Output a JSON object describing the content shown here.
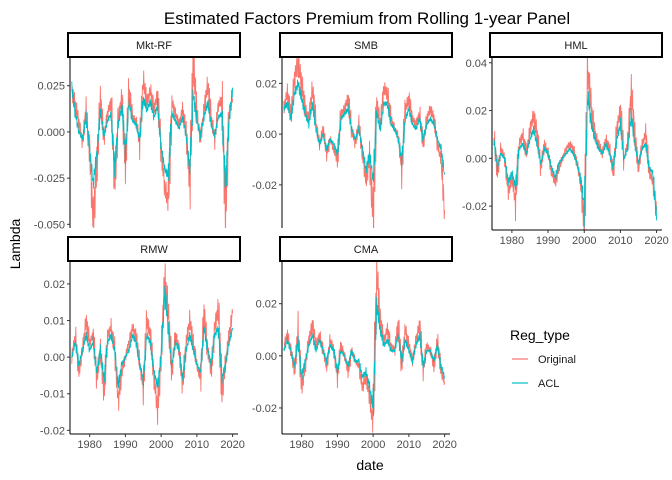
{
  "chart_data": {
    "type": "line",
    "title": "Estimated Factors Premium from Rolling 1-year Panel",
    "xlabel": "date",
    "ylabel": "Lambda",
    "x_ticks": [
      1980,
      1990,
      2000,
      2010,
      2020
    ],
    "x_range": [
      1974.5,
      2021.5
    ],
    "legend": {
      "title": "Reg_type",
      "placement": "right",
      "entries": [
        {
          "name": "Original",
          "color": "#F8766D"
        },
        {
          "name": "ACL",
          "color": "#00BFC4"
        }
      ]
    },
    "panels": [
      {
        "name": "Mkt-RF",
        "ylim": [
          -0.052,
          0.04
        ],
        "y_ticks": [
          -0.05,
          -0.025,
          0.0,
          0.025
        ],
        "y_tick_labels": [
          "-0.050",
          "-0.025",
          "0.000",
          "0.025"
        ],
        "x": [
          1975,
          1976,
          1977,
          1978,
          1979,
          1980,
          1981,
          1982,
          1983,
          1984,
          1985,
          1986,
          1987,
          1988,
          1989,
          1990,
          1991,
          1992,
          1993,
          1994,
          1995,
          1996,
          1997,
          1998,
          1999,
          2000,
          2001,
          2002,
          2003,
          2004,
          2005,
          2006,
          2007,
          2008,
          2009,
          2010,
          2011,
          2012,
          2013,
          2014,
          2015,
          2016,
          2017,
          2018,
          2019,
          2020
        ],
        "series": [
          {
            "name": "Original",
            "values": [
              0.022,
              0.015,
              0.005,
              -0.006,
              0.012,
              -0.012,
              -0.048,
              -0.02,
              0.018,
              -0.004,
              0.01,
              0.016,
              -0.028,
              0.006,
              0.02,
              -0.018,
              0.022,
              0.008,
              0.006,
              -0.006,
              0.028,
              0.016,
              0.022,
              0.012,
              0.02,
              -0.01,
              -0.03,
              -0.038,
              0.016,
              0.01,
              0.004,
              0.012,
              0.0,
              -0.03,
              0.038,
              0.01,
              -0.004,
              0.012,
              0.026,
              0.008,
              -0.004,
              0.014,
              0.018,
              -0.044,
              0.01,
              0.018
            ]
          },
          {
            "name": "ACL",
            "values": [
              0.024,
              0.01,
              0.0,
              -0.004,
              0.008,
              -0.01,
              -0.028,
              -0.012,
              0.012,
              -0.002,
              0.006,
              0.01,
              -0.02,
              0.004,
              0.014,
              -0.012,
              0.016,
              0.006,
              0.004,
              -0.004,
              0.018,
              0.012,
              0.016,
              0.008,
              0.014,
              -0.008,
              -0.02,
              -0.024,
              0.01,
              0.006,
              0.002,
              0.008,
              -0.002,
              -0.02,
              0.02,
              0.006,
              -0.002,
              0.008,
              0.016,
              0.004,
              -0.002,
              0.008,
              0.01,
              -0.03,
              0.006,
              0.024
            ]
          }
        ]
      },
      {
        "name": "SMB",
        "ylim": [
          -0.037,
          0.03
        ],
        "y_ticks": [
          -0.02,
          0.0,
          0.02
        ],
        "y_tick_labels": [
          "-0.02",
          "0.00",
          "0.02"
        ],
        "x": [
          1975,
          1976,
          1977,
          1978,
          1979,
          1980,
          1981,
          1982,
          1983,
          1984,
          1985,
          1986,
          1987,
          1988,
          1989,
          1990,
          1991,
          1992,
          1993,
          1994,
          1995,
          1996,
          1997,
          1998,
          1999,
          2000,
          2001,
          2002,
          2003,
          2004,
          2005,
          2006,
          2007,
          2008,
          2009,
          2010,
          2011,
          2012,
          2013,
          2014,
          2015,
          2016,
          2017,
          2018,
          2019,
          2020
        ],
        "series": [
          {
            "name": "Original",
            "values": [
              0.01,
              0.016,
              0.008,
              0.022,
              0.028,
              0.02,
              0.01,
              0.006,
              0.018,
              0.004,
              -0.004,
              0.002,
              -0.008,
              -0.002,
              -0.006,
              -0.01,
              0.008,
              0.01,
              0.014,
              0.002,
              -0.004,
              0.004,
              -0.008,
              -0.018,
              -0.01,
              -0.034,
              0.012,
              0.004,
              0.018,
              0.016,
              0.006,
              0.002,
              0.0,
              -0.014,
              0.01,
              0.014,
              0.006,
              0.004,
              0.008,
              -0.004,
              0.006,
              0.01,
              0.006,
              -0.004,
              -0.01,
              -0.03
            ]
          },
          {
            "name": "ACL",
            "values": [
              0.01,
              0.012,
              0.006,
              0.016,
              0.02,
              0.014,
              0.008,
              0.004,
              0.012,
              0.002,
              -0.004,
              0.0,
              -0.006,
              -0.002,
              -0.004,
              -0.008,
              0.006,
              0.008,
              0.01,
              0.002,
              -0.002,
              0.002,
              -0.006,
              -0.014,
              -0.008,
              -0.018,
              0.008,
              0.002,
              0.012,
              0.012,
              0.004,
              0.002,
              -0.002,
              -0.01,
              0.006,
              0.01,
              0.004,
              0.002,
              0.006,
              -0.002,
              0.004,
              0.006,
              0.004,
              -0.002,
              -0.006,
              -0.016
            ]
          }
        ]
      },
      {
        "name": "HML",
        "ylim": [
          -0.03,
          0.042
        ],
        "y_ticks": [
          -0.02,
          0.0,
          0.02,
          0.04
        ],
        "y_tick_labels": [
          "-0.02",
          "0.00",
          "0.02",
          "0.04"
        ],
        "x": [
          1975,
          1976,
          1977,
          1978,
          1979,
          1980,
          1981,
          1982,
          1983,
          1984,
          1985,
          1986,
          1987,
          1988,
          1989,
          1990,
          1991,
          1992,
          1993,
          1994,
          1995,
          1996,
          1997,
          1998,
          1999,
          2000,
          2001,
          2002,
          2003,
          2004,
          2005,
          2006,
          2007,
          2008,
          2009,
          2010,
          2011,
          2012,
          2013,
          2014,
          2015,
          2016,
          2017,
          2018,
          2019,
          2020
        ],
        "series": [
          {
            "name": "Original",
            "values": [
              0.01,
              -0.006,
              0.004,
              0.0,
              -0.014,
              -0.008,
              -0.018,
              0.006,
              0.01,
              0.002,
              0.012,
              0.018,
              0.01,
              -0.004,
              0.006,
              0.002,
              -0.006,
              -0.01,
              -0.004,
              0.0,
              0.004,
              0.006,
              0.004,
              -0.002,
              -0.01,
              -0.028,
              0.036,
              0.02,
              0.01,
              0.006,
              0.002,
              0.008,
              0.004,
              -0.006,
              0.012,
              0.02,
              0.0,
              0.006,
              0.028,
              0.01,
              -0.004,
              0.006,
              0.01,
              -0.006,
              -0.01,
              -0.022
            ]
          },
          {
            "name": "ACL",
            "values": [
              0.008,
              -0.004,
              0.002,
              0.0,
              -0.01,
              -0.006,
              -0.012,
              0.004,
              0.006,
              0.002,
              0.008,
              0.012,
              0.006,
              -0.002,
              0.004,
              0.002,
              -0.004,
              -0.008,
              -0.002,
              0.0,
              0.002,
              0.004,
              0.002,
              -0.002,
              -0.008,
              -0.02,
              0.026,
              0.014,
              0.008,
              0.004,
              0.002,
              0.006,
              0.002,
              -0.004,
              0.008,
              0.014,
              0.0,
              0.004,
              0.018,
              0.006,
              -0.002,
              0.004,
              0.006,
              -0.004,
              -0.006,
              -0.026
            ]
          }
        ]
      },
      {
        "name": "RMW",
        "ylim": [
          -0.021,
          0.026
        ],
        "y_ticks": [
          -0.02,
          -0.01,
          0.0,
          0.01,
          0.02
        ],
        "y_tick_labels": [
          "-0.02",
          "-0.01",
          "0.00",
          "0.01",
          "0.02"
        ],
        "x": [
          1975,
          1976,
          1977,
          1978,
          1979,
          1980,
          1981,
          1982,
          1983,
          1984,
          1985,
          1986,
          1987,
          1988,
          1989,
          1990,
          1991,
          1992,
          1993,
          1994,
          1995,
          1996,
          1997,
          1998,
          1999,
          2000,
          2001,
          2002,
          2003,
          2004,
          2005,
          2006,
          2007,
          2008,
          2009,
          2010,
          2011,
          2012,
          2013,
          2014,
          2015,
          2016,
          2017,
          2018,
          2019,
          2020
        ],
        "series": [
          {
            "name": "Original",
            "values": [
              0.0,
              0.006,
              -0.004,
              0.002,
              0.01,
              0.004,
              0.006,
              -0.006,
              0.002,
              -0.01,
              0.006,
              0.008,
              0.002,
              -0.012,
              -0.004,
              0.0,
              0.004,
              0.008,
              0.006,
              -0.002,
              -0.008,
              0.01,
              0.006,
              -0.006,
              -0.014,
              0.0,
              0.022,
              0.012,
              -0.004,
              0.006,
              0.002,
              -0.008,
              0.004,
              0.01,
              0.004,
              -0.002,
              -0.006,
              0.012,
              0.002,
              -0.004,
              0.008,
              0.014,
              -0.01,
              -0.002,
              0.006,
              0.012
            ]
          },
          {
            "name": "ACL",
            "values": [
              0.0,
              0.004,
              -0.002,
              0.002,
              0.006,
              0.002,
              0.004,
              -0.004,
              0.002,
              -0.006,
              0.004,
              0.006,
              0.002,
              -0.008,
              -0.002,
              0.0,
              0.002,
              0.006,
              0.004,
              -0.002,
              -0.006,
              0.006,
              0.004,
              -0.004,
              -0.008,
              0.0,
              0.018,
              0.008,
              -0.002,
              0.004,
              0.002,
              -0.006,
              0.002,
              0.006,
              0.002,
              -0.002,
              -0.004,
              0.008,
              0.002,
              -0.002,
              0.006,
              0.008,
              -0.006,
              -0.002,
              0.004,
              0.008
            ]
          }
        ]
      },
      {
        "name": "CMA",
        "ylim": [
          -0.03,
          0.036
        ],
        "y_ticks": [
          -0.02,
          0.0,
          0.02
        ],
        "y_tick_labels": [
          "-0.02",
          "0.00",
          "0.02"
        ],
        "x": [
          1975,
          1976,
          1977,
          1978,
          1979,
          1980,
          1981,
          1982,
          1983,
          1984,
          1985,
          1986,
          1987,
          1988,
          1989,
          1990,
          1991,
          1992,
          1993,
          1994,
          1995,
          1996,
          1997,
          1998,
          1999,
          2000,
          2001,
          2002,
          2003,
          2004,
          2005,
          2006,
          2007,
          2008,
          2009,
          2010,
          2011,
          2012,
          2013,
          2014,
          2015,
          2016,
          2017,
          2018,
          2019,
          2020
        ],
        "series": [
          {
            "name": "Original",
            "values": [
              0.004,
              0.008,
              0.002,
              -0.006,
              0.01,
              -0.012,
              -0.004,
              0.006,
              0.012,
              0.004,
              0.008,
              0.002,
              -0.004,
              0.006,
              0.002,
              -0.008,
              0.004,
              0.0,
              -0.006,
              0.002,
              -0.002,
              -0.004,
              -0.012,
              -0.008,
              -0.016,
              -0.026,
              0.032,
              0.014,
              0.006,
              0.01,
              0.004,
              0.002,
              0.012,
              -0.004,
              0.01,
              0.004,
              -0.002,
              0.006,
              0.012,
              -0.006,
              0.004,
              0.002,
              -0.004,
              0.006,
              -0.006,
              -0.01
            ]
          },
          {
            "name": "ACL",
            "values": [
              0.002,
              0.006,
              0.002,
              -0.004,
              0.006,
              -0.008,
              -0.002,
              0.004,
              0.008,
              0.002,
              0.006,
              0.002,
              -0.002,
              0.004,
              0.002,
              -0.006,
              0.002,
              0.0,
              -0.004,
              0.002,
              -0.002,
              -0.002,
              -0.008,
              -0.006,
              -0.012,
              -0.02,
              0.02,
              0.01,
              0.004,
              0.006,
              0.002,
              0.002,
              0.008,
              -0.002,
              0.006,
              0.002,
              -0.002,
              0.004,
              0.008,
              -0.004,
              0.002,
              0.002,
              -0.002,
              0.004,
              -0.004,
              -0.008
            ]
          }
        ]
      }
    ]
  }
}
